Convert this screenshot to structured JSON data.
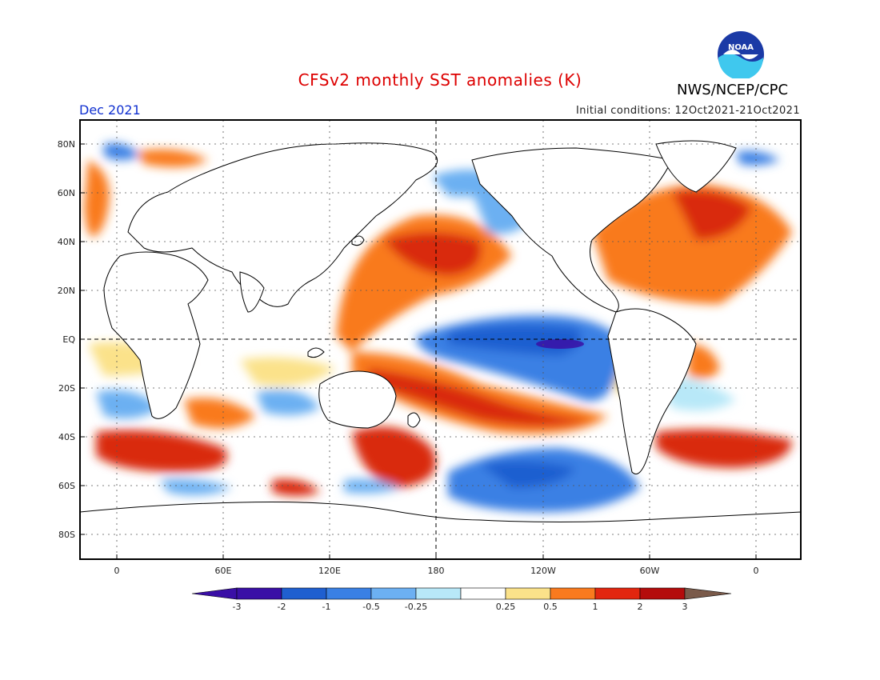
{
  "title": "CFSv2 monthly SST anomalies (K)",
  "period": "Dec 2021",
  "initial_conditions": "Initial conditions: 12Oct2021-21Oct2021",
  "agency": "NWS/NCEP/CPC",
  "lat_labels": [
    "80N",
    "60N",
    "40N",
    "20N",
    "EQ",
    "20S",
    "40S",
    "60S",
    "80S"
  ],
  "lon_labels": [
    "0",
    "60E",
    "120E",
    "180",
    "120W",
    "60W",
    "0"
  ],
  "colorbar": {
    "labels": [
      "-3",
      "-2",
      "-1",
      "-0.5",
      "-0.25",
      "0.25",
      "0.5",
      "1",
      "2",
      "3"
    ],
    "colors": [
      "#3a0fa6",
      "#1f5fd0",
      "#3a80e4",
      "#6cb0f2",
      "#b8e8f8",
      "#ffffff",
      "#fbe28a",
      "#f97a1e",
      "#e2260f",
      "#b40c0c"
    ],
    "under_color": "#3a0fa6",
    "over_color": "#7a5a4a"
  },
  "colors": {
    "title": "#dd0000",
    "period": "#1030d0",
    "land": "#ffffff"
  }
}
